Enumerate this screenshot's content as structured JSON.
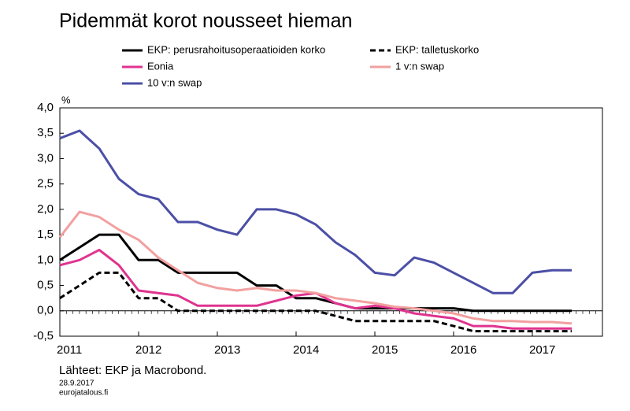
{
  "chart_data": {
    "type": "line",
    "title": "Pidemmät korot nousseet hieman",
    "y_unit": "%",
    "source": "Lähteet: EKP ja Macrobond.",
    "date": "28.9.2017",
    "site": "eurojatalous.fi",
    "x": [
      2011,
      2011.25,
      2011.5,
      2011.75,
      2012,
      2012.25,
      2012.5,
      2012.75,
      2013,
      2013.25,
      2013.5,
      2013.75,
      2014,
      2014.25,
      2014.5,
      2014.75,
      2015,
      2015.25,
      2015.5,
      2015.75,
      2016,
      2016.25,
      2016.5,
      2016.75,
      2017,
      2017.25,
      2017.5
    ],
    "xlim": [
      2011,
      2017.89
    ],
    "xticks": [
      {
        "value": 2011,
        "label": "2011"
      },
      {
        "value": 2012,
        "label": "2012"
      },
      {
        "value": 2013,
        "label": "2013"
      },
      {
        "value": 2014,
        "label": "2014"
      },
      {
        "value": 2015,
        "label": "2015"
      },
      {
        "value": 2016,
        "label": "2016"
      },
      {
        "value": 2017,
        "label": "2017"
      }
    ],
    "ylim": [
      -0.5,
      4.0
    ],
    "yticks": [
      {
        "value": -0.5,
        "label": "-0,5"
      },
      {
        "value": 0,
        "label": "0,0"
      },
      {
        "value": 0.5,
        "label": "0,5"
      },
      {
        "value": 1,
        "label": "1,0"
      },
      {
        "value": 1.5,
        "label": "1,5"
      },
      {
        "value": 2,
        "label": "2,0"
      },
      {
        "value": 2.5,
        "label": "2,5"
      },
      {
        "value": 3,
        "label": "3,0"
      },
      {
        "value": 3.5,
        "label": "3,5"
      },
      {
        "value": 4,
        "label": "4,0"
      }
    ],
    "grid": false,
    "series": [
      {
        "name": "EKP: perusrahoitusoperaatioiden korko",
        "color": "#000000",
        "dashed": false,
        "values": [
          1.0,
          1.25,
          1.5,
          1.5,
          1.0,
          1.0,
          0.75,
          0.75,
          0.75,
          0.75,
          0.5,
          0.5,
          0.25,
          0.25,
          0.15,
          0.05,
          0.05,
          0.05,
          0.05,
          0.05,
          0.05,
          0,
          0,
          0,
          0,
          0,
          0
        ]
      },
      {
        "name": "EKP: talletuskorko",
        "color": "#000000",
        "dashed": true,
        "values": [
          0.25,
          0.5,
          0.75,
          0.75,
          0.25,
          0.25,
          0,
          0,
          0,
          0,
          0,
          0,
          0,
          0,
          -0.1,
          -0.2,
          -0.2,
          -0.2,
          -0.2,
          -0.2,
          -0.3,
          -0.4,
          -0.4,
          -0.4,
          -0.4,
          -0.4,
          -0.4
        ]
      },
      {
        "name": "Eonia",
        "color": "#e0338f",
        "dashed": false,
        "values": [
          0.9,
          1.0,
          1.2,
          0.9,
          0.4,
          0.35,
          0.3,
          0.1,
          0.1,
          0.1,
          0.1,
          0.2,
          0.3,
          0.35,
          0.15,
          0.05,
          0.1,
          0.05,
          -0.05,
          -0.1,
          -0.15,
          -0.3,
          -0.3,
          -0.35,
          -0.35,
          -0.35,
          -0.35
        ]
      },
      {
        "name": "1 v:n swap",
        "color": "#f2a0a0",
        "dashed": false,
        "values": [
          1.45,
          1.95,
          1.85,
          1.6,
          1.4,
          1.05,
          0.8,
          0.55,
          0.45,
          0.4,
          0.45,
          0.4,
          0.4,
          0.35,
          0.25,
          0.2,
          0.15,
          0.08,
          0.05,
          0.0,
          -0.05,
          -0.15,
          -0.2,
          -0.2,
          -0.22,
          -0.22,
          -0.25
        ]
      },
      {
        "name": "10 v:n swap",
        "color": "#4b4fa6",
        "dashed": false,
        "values": [
          3.4,
          3.55,
          3.2,
          2.6,
          2.3,
          2.2,
          1.75,
          1.75,
          1.6,
          1.5,
          2.0,
          2.0,
          1.9,
          1.7,
          1.35,
          1.1,
          0.75,
          0.7,
          1.05,
          0.95,
          0.75,
          0.55,
          0.35,
          0.35,
          0.75,
          0.8,
          0.8
        ]
      }
    ]
  }
}
